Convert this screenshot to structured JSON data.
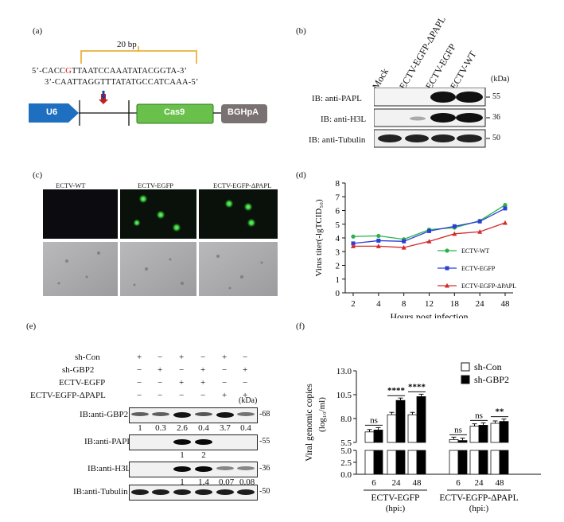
{
  "panels": {
    "a": "(a)",
    "b": "(b)",
    "c": "(c)",
    "d": "(d)",
    "e": "(e)",
    "f": "(f)"
  },
  "panel_a": {
    "bracket_label": "20 bp",
    "seq_top_pre": "5’-CACC",
    "seq_top_red": "G",
    "seq_top_post": "TTAATCCAAATATACGGTA-3’",
    "seq_bottom": "3’-CAATTAGGTTTATATGCCATCAAA-5’",
    "u6": "U6",
    "cas9": "Cas9",
    "bghpa": "BGHpA",
    "colors": {
      "u6": "#1f6fc0",
      "cas9": "#69c14b",
      "bghpa": "#7a7272",
      "bracket": "#e8a21a",
      "arrow_red": "#c42020",
      "arrow_blue": "#1f3f9a"
    }
  },
  "panel_b": {
    "lanes": [
      "Mock",
      "ECTV-EGFP-ΔPAPL",
      "ECTV-EGFP",
      "ECTV-WT"
    ],
    "kda_label": "(kDa)",
    "rows": [
      {
        "label": "IB: anti-PAPL",
        "kda": "55"
      },
      {
        "label": "IB: anti-H3L",
        "kda": "36"
      },
      {
        "label": "IB: anti-Tubulin",
        "kda": "50"
      }
    ]
  },
  "panel_c": {
    "titles": [
      "ECTV-WT",
      "ECTV-EGFP",
      "ECTV-EGFP-ΔPAPL"
    ]
  },
  "panel_e": {
    "rows": [
      {
        "label": "sh-Con",
        "signs": [
          "+",
          "−",
          "+",
          "−",
          "+",
          "−"
        ]
      },
      {
        "label": "sh-GBP2",
        "signs": [
          "−",
          "+",
          "−",
          "+",
          "−",
          "+"
        ]
      },
      {
        "label": "ECTV-EGFP",
        "signs": [
          "−",
          "−",
          "+",
          "+",
          "−",
          "−"
        ]
      },
      {
        "label": "ECTV-EGFP-ΔPAPL",
        "signs": [
          "−",
          "−",
          "−",
          "−",
          "+",
          "+"
        ]
      }
    ],
    "kda_label": "(kDa)",
    "blots": [
      {
        "label": "IB:anti-GBP2",
        "kda": "68",
        "quant": [
          "1",
          "0.3",
          "2.6",
          "0.4",
          "3.7",
          "0.4"
        ]
      },
      {
        "label": "IB:anti-PAPL",
        "kda": "55",
        "quant": [
          "",
          "",
          "1",
          "2",
          "",
          ""
        ]
      },
      {
        "label": "IB:anti-H3L",
        "kda": "36",
        "quant": [
          "",
          "",
          "1",
          "1.4",
          "0.07",
          "0.08"
        ]
      },
      {
        "label": "IB:anti-Tubulin",
        "kda": "50",
        "quant": [
          "",
          "",
          "",
          "",
          "",
          ""
        ]
      }
    ]
  },
  "chart_data": [
    {
      "type": "line",
      "xlabel": "Hours post infection",
      "ylabel": "Virus titer(-lgTCID₅₀)",
      "categories": [
        "2",
        "4",
        "8",
        "12",
        "18",
        "24",
        "48"
      ],
      "ylim": [
        0,
        8
      ],
      "yticks": [
        "0",
        "1",
        "2",
        "3",
        "4",
        "5",
        "6",
        "7",
        "8"
      ],
      "series": [
        {
          "name": "ECTV-WT",
          "color": "#27b24a",
          "marker": "circle",
          "values": [
            4.1,
            4.15,
            3.9,
            4.6,
            4.75,
            5.25,
            6.4
          ]
        },
        {
          "name": "ECTV-EGFP",
          "color": "#2b3fd6",
          "marker": "square",
          "values": [
            3.6,
            3.8,
            3.75,
            4.5,
            4.85,
            5.2,
            6.15
          ]
        },
        {
          "name": "ECTV-EGFP-ΔPAPL",
          "color": "#d42a2a",
          "marker": "triangle",
          "values": [
            3.4,
            3.4,
            3.3,
            3.75,
            4.3,
            4.45,
            5.1
          ]
        }
      ],
      "legend": "right"
    },
    {
      "type": "bar",
      "ylabel_line1": "Viral genomic copies",
      "ylabel_line2": "(log₁₀/ml)",
      "categories": [
        "6",
        "24",
        "48",
        "6",
        "24",
        "48"
      ],
      "groups": [
        {
          "label": "ECTV-EGFP",
          "unit": "(hpi:)"
        },
        {
          "label": "ECTV-EGFP-ΔPAPL",
          "unit": "(hpi:)"
        }
      ],
      "yticks_upper": [
        "5.5",
        "8.0",
        "10.5",
        "13.0"
      ],
      "yticks_lower": [
        "0.0",
        "2.5",
        "5.0"
      ],
      "series": [
        {
          "name": "sh-Con",
          "color": "#ffffff",
          "values": [
            6.6,
            8.4,
            8.4,
            5.8,
            7.2,
            7.5
          ]
        },
        {
          "name": "sh-GBP2",
          "color": "#000000",
          "values": [
            6.8,
            9.9,
            10.3,
            5.7,
            7.3,
            7.7
          ]
        }
      ],
      "significance": [
        "ns",
        "****",
        "****",
        "ns",
        "ns",
        "**"
      ],
      "legend": "top-right"
    }
  ]
}
